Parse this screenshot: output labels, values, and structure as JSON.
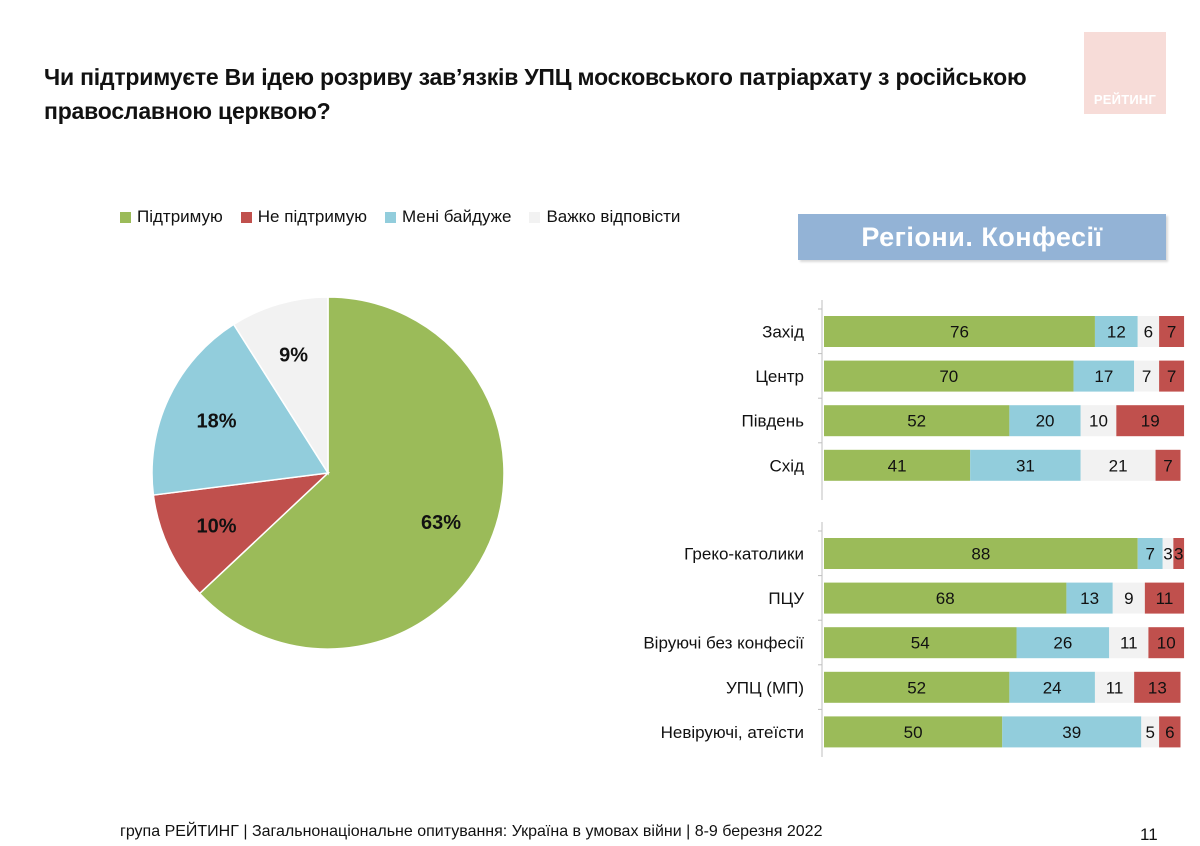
{
  "title": "Чи підтримуєте Ви ідею розриву зав’язків УПЦ московського патріархату з російською православною церквою?",
  "logo_text": "РЕЙТИНГ",
  "section_title": "Регіони. Конфесії",
  "footer": "група РЕЙТИНГ | Загальнонаціональне опитування: Україна в умовах війни | 8-9 березня 2022",
  "page_number": "11",
  "legend": [
    {
      "label": "Підтримую",
      "color": "#9bbb59"
    },
    {
      "label": "Не підтримую",
      "color": "#c0504d"
    },
    {
      "label": "Мені байдуже",
      "color": "#92cddc"
    },
    {
      "label": "Важко відповісти",
      "color": "#f2f2f2"
    }
  ],
  "chart_data": [
    {
      "type": "pie",
      "categories": [
        "Підтримую",
        "Не підтримую",
        "Мені байдуже",
        "Важко відповісти"
      ],
      "values": [
        63,
        10,
        18,
        9
      ],
      "labels": [
        "63%",
        "10%",
        "18%",
        "9%"
      ],
      "colors": [
        "#9bbb59",
        "#c0504d",
        "#92cddc",
        "#f2f2f2"
      ]
    },
    {
      "type": "bar",
      "orientation": "horizontal",
      "stacked": true,
      "xlim": [
        0,
        100
      ],
      "series_order_on_bar": [
        "Підтримую",
        "Мені байдуже",
        "Важко відповісти",
        "Не підтримую"
      ],
      "series_colors": [
        "#9bbb59",
        "#92cddc",
        "#f2f2f2",
        "#c0504d"
      ],
      "groups": [
        {
          "rows": [
            {
              "label": "Захід",
              "values": [
                76,
                12,
                6,
                7
              ]
            },
            {
              "label": "Центр",
              "values": [
                70,
                17,
                7,
                7
              ]
            },
            {
              "label": "Південь",
              "values": [
                52,
                20,
                10,
                19
              ]
            },
            {
              "label": "Схід",
              "values": [
                41,
                31,
                21,
                7
              ]
            }
          ]
        },
        {
          "rows": [
            {
              "label": "Греко-католики",
              "values": [
                88,
                7,
                3,
                3
              ]
            },
            {
              "label": "ПЦУ",
              "values": [
                68,
                13,
                9,
                11
              ]
            },
            {
              "label": "Віруючі без конфесії",
              "values": [
                54,
                26,
                11,
                10
              ]
            },
            {
              "label": "УПЦ (МП)",
              "values": [
                52,
                24,
                11,
                13
              ]
            },
            {
              "label": "Невіруючі, атеїсти",
              "values": [
                50,
                39,
                5,
                6
              ]
            }
          ]
        }
      ]
    }
  ]
}
